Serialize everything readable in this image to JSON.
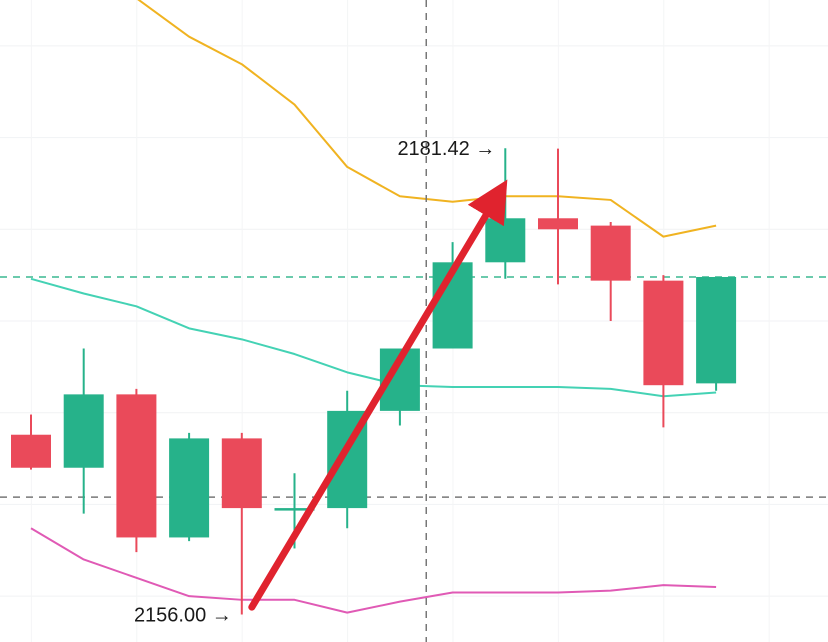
{
  "chart_data": {
    "type": "candlestick",
    "title": "",
    "xlabel": "",
    "ylabel": "",
    "ylim": [
      2154.5,
      2189.5
    ],
    "grid": true,
    "colors": {
      "up": "#26b28a",
      "down": "#ea4a5a",
      "upper_band": "#f0b321",
      "middle_band": "#44d2b4",
      "lower_band": "#e05ab5",
      "arrow": "#e0232e",
      "hline": "#3ab890",
      "crosshair": "#777777"
    },
    "candles": [
      {
        "open": 2165.8,
        "high": 2166.9,
        "low": 2163.9,
        "close": 2164.0
      },
      {
        "open": 2164.0,
        "high": 2170.5,
        "low": 2161.5,
        "close": 2168.0
      },
      {
        "open": 2168.0,
        "high": 2168.3,
        "low": 2159.4,
        "close": 2160.2
      },
      {
        "open": 2160.2,
        "high": 2165.9,
        "low": 2160.0,
        "close": 2165.6
      },
      {
        "open": 2165.6,
        "high": 2165.9,
        "low": 2156.0,
        "close": 2161.8
      },
      {
        "open": 2161.8,
        "high": 2163.7,
        "low": 2159.6,
        "close": 2161.8
      },
      {
        "open": 2161.8,
        "high": 2168.2,
        "low": 2160.7,
        "close": 2167.1
      },
      {
        "open": 2167.1,
        "high": 2170.4,
        "low": 2166.3,
        "close": 2170.5
      },
      {
        "open": 2170.5,
        "high": 2176.3,
        "low": 2170.5,
        "close": 2175.2
      },
      {
        "open": 2175.2,
        "high": 2181.42,
        "low": 2174.3,
        "close": 2177.6
      },
      {
        "open": 2177.6,
        "high": 2181.4,
        "low": 2174.0,
        "close": 2177.0
      },
      {
        "open": 2177.2,
        "high": 2177.4,
        "low": 2172.0,
        "close": 2174.2
      },
      {
        "open": 2174.2,
        "high": 2174.5,
        "low": 2166.2,
        "close": 2168.5
      },
      {
        "open": 2168.6,
        "high": 2174.4,
        "low": 2168.2,
        "close": 2174.4
      }
    ],
    "upper_band": [
      2192.0,
      2190.4,
      2189.6,
      2187.5,
      2186.0,
      2183.8,
      2180.4,
      2178.8,
      2178.5,
      2178.8,
      2178.8,
      2178.6,
      2176.6,
      2177.2
    ],
    "middle_band": [
      2174.3,
      2173.5,
      2172.8,
      2171.6,
      2171.0,
      2170.2,
      2169.2,
      2168.5,
      2168.4,
      2168.4,
      2168.4,
      2168.3,
      2167.9,
      2168.1
    ],
    "lower_band": [
      2160.7,
      2159.0,
      2158.0,
      2157.0,
      2156.8,
      2156.8,
      2156.1,
      2156.7,
      2157.2,
      2157.2,
      2157.2,
      2157.3,
      2157.6,
      2157.5
    ],
    "horizontal_lines": [
      2174.4,
      2162.4
    ],
    "crosshair_index": 7.5,
    "annotations": [
      {
        "text": "2181.42 →",
        "candle": 9,
        "value": 2181.42
      },
      {
        "text": "2156.00 →",
        "candle": 4,
        "value": 2156.0
      }
    ],
    "trend_arrow": {
      "from": {
        "candle": 4,
        "value": 2156.4
      },
      "to": {
        "candle": 9,
        "value": 2178.8
      }
    }
  }
}
